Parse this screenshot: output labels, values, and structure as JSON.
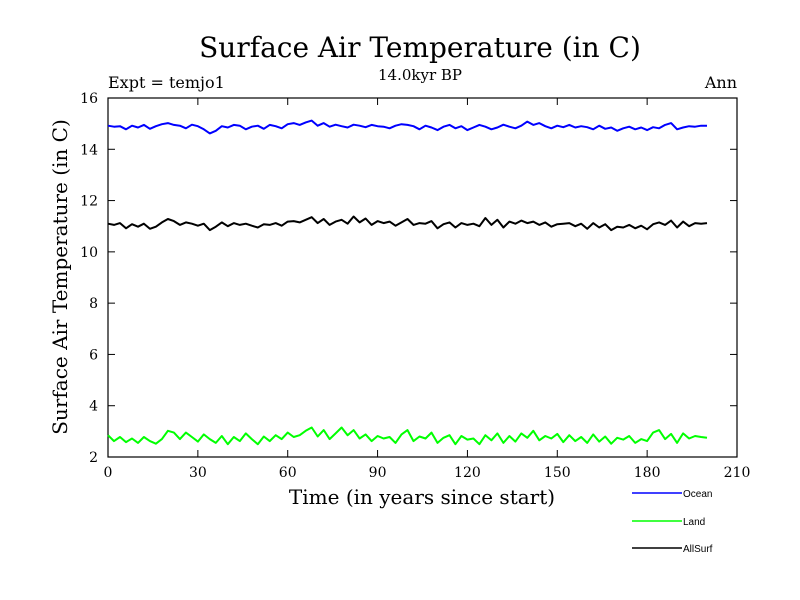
{
  "chart_data": {
    "type": "line",
    "title": "Surface Air Temperature (in C)",
    "subtitle": "14.0kyr BP",
    "left_label": "Expt = temjo1",
    "right_label": "Ann",
    "xlabel": "Time (in years since start)",
    "ylabel": "Surface Air Temperature (in C)",
    "xlim": [
      0,
      210
    ],
    "ylim": [
      2,
      16
    ],
    "xticks": [
      0,
      30,
      60,
      90,
      120,
      150,
      180,
      210
    ],
    "yticks": [
      2,
      4,
      6,
      8,
      10,
      12,
      14,
      16
    ],
    "x_start": 0,
    "x_step": 2,
    "series": [
      {
        "name": "Ocean",
        "color": "#0000ff",
        "values": [
          14.92,
          14.88,
          14.9,
          14.78,
          14.92,
          14.85,
          14.95,
          14.8,
          14.9,
          14.98,
          15.02,
          14.95,
          14.92,
          14.82,
          14.96,
          14.9,
          14.78,
          14.62,
          14.72,
          14.9,
          14.85,
          14.95,
          14.92,
          14.78,
          14.88,
          14.92,
          14.8,
          14.95,
          14.9,
          14.82,
          14.98,
          15.02,
          14.95,
          15.05,
          15.12,
          14.92,
          15.02,
          14.88,
          14.96,
          14.9,
          14.85,
          14.96,
          14.92,
          14.86,
          14.95,
          14.9,
          14.88,
          14.82,
          14.92,
          14.98,
          14.95,
          14.9,
          14.78,
          14.92,
          14.85,
          14.75,
          14.88,
          14.95,
          14.82,
          14.9,
          14.75,
          14.85,
          14.95,
          14.88,
          14.78,
          14.85,
          14.96,
          14.88,
          14.82,
          14.92,
          15.08,
          14.95,
          15.02,
          14.9,
          14.82,
          14.92,
          14.86,
          14.95,
          14.85,
          14.9,
          14.86,
          14.78,
          14.92,
          14.8,
          14.85,
          14.72,
          14.82,
          14.88,
          14.78,
          14.85,
          14.75,
          14.86,
          14.82,
          14.95,
          15.02,
          14.78,
          14.85,
          14.9,
          14.88,
          14.92,
          14.92
        ]
      },
      {
        "name": "Land",
        "color": "#00ff00",
        "values": [
          2.85,
          2.62,
          2.78,
          2.58,
          2.72,
          2.55,
          2.78,
          2.62,
          2.52,
          2.7,
          3.02,
          2.95,
          2.7,
          2.95,
          2.78,
          2.6,
          2.88,
          2.7,
          2.55,
          2.82,
          2.5,
          2.78,
          2.62,
          2.92,
          2.7,
          2.5,
          2.8,
          2.62,
          2.85,
          2.7,
          2.95,
          2.78,
          2.85,
          3.02,
          3.15,
          2.8,
          3.05,
          2.7,
          2.92,
          3.15,
          2.85,
          3.05,
          2.72,
          2.88,
          2.62,
          2.82,
          2.72,
          2.78,
          2.55,
          2.88,
          3.05,
          2.62,
          2.8,
          2.72,
          2.95,
          2.55,
          2.75,
          2.85,
          2.5,
          2.82,
          2.68,
          2.72,
          2.5,
          2.85,
          2.65,
          2.92,
          2.55,
          2.82,
          2.6,
          2.92,
          2.75,
          3.02,
          2.65,
          2.82,
          2.72,
          2.9,
          2.58,
          2.85,
          2.62,
          2.78,
          2.55,
          2.88,
          2.6,
          2.8,
          2.52,
          2.75,
          2.68,
          2.82,
          2.55,
          2.7,
          2.62,
          2.95,
          3.05,
          2.7,
          2.9,
          2.55,
          2.92,
          2.72,
          2.82,
          2.78,
          2.75
        ]
      },
      {
        "name": "AllSurf",
        "color": "#000000",
        "values": [
          11.1,
          11.05,
          11.12,
          10.92,
          11.08,
          10.98,
          11.1,
          10.9,
          10.98,
          11.15,
          11.28,
          11.2,
          11.05,
          11.15,
          11.1,
          11.02,
          11.1,
          10.85,
          10.98,
          11.15,
          11.0,
          11.12,
          11.05,
          11.1,
          11.02,
          10.95,
          11.08,
          11.05,
          11.12,
          11.02,
          11.18,
          11.2,
          11.15,
          11.25,
          11.35,
          11.12,
          11.28,
          11.05,
          11.18,
          11.25,
          11.1,
          11.38,
          11.15,
          11.3,
          11.05,
          11.2,
          11.12,
          11.18,
          11.02,
          11.15,
          11.28,
          11.05,
          11.12,
          11.1,
          11.2,
          10.92,
          11.08,
          11.15,
          10.95,
          11.12,
          11.05,
          11.1,
          11.0,
          11.32,
          11.05,
          11.25,
          10.95,
          11.18,
          11.1,
          11.22,
          11.12,
          11.18,
          11.05,
          11.15,
          10.98,
          11.08,
          11.1,
          11.12,
          11.0,
          11.1,
          10.9,
          11.12,
          10.95,
          11.08,
          10.85,
          10.98,
          10.95,
          11.05,
          10.92,
          11.02,
          10.88,
          11.08,
          11.15,
          11.05,
          11.22,
          10.95,
          11.18,
          11.0,
          11.12,
          11.1,
          11.12
        ]
      }
    ]
  }
}
